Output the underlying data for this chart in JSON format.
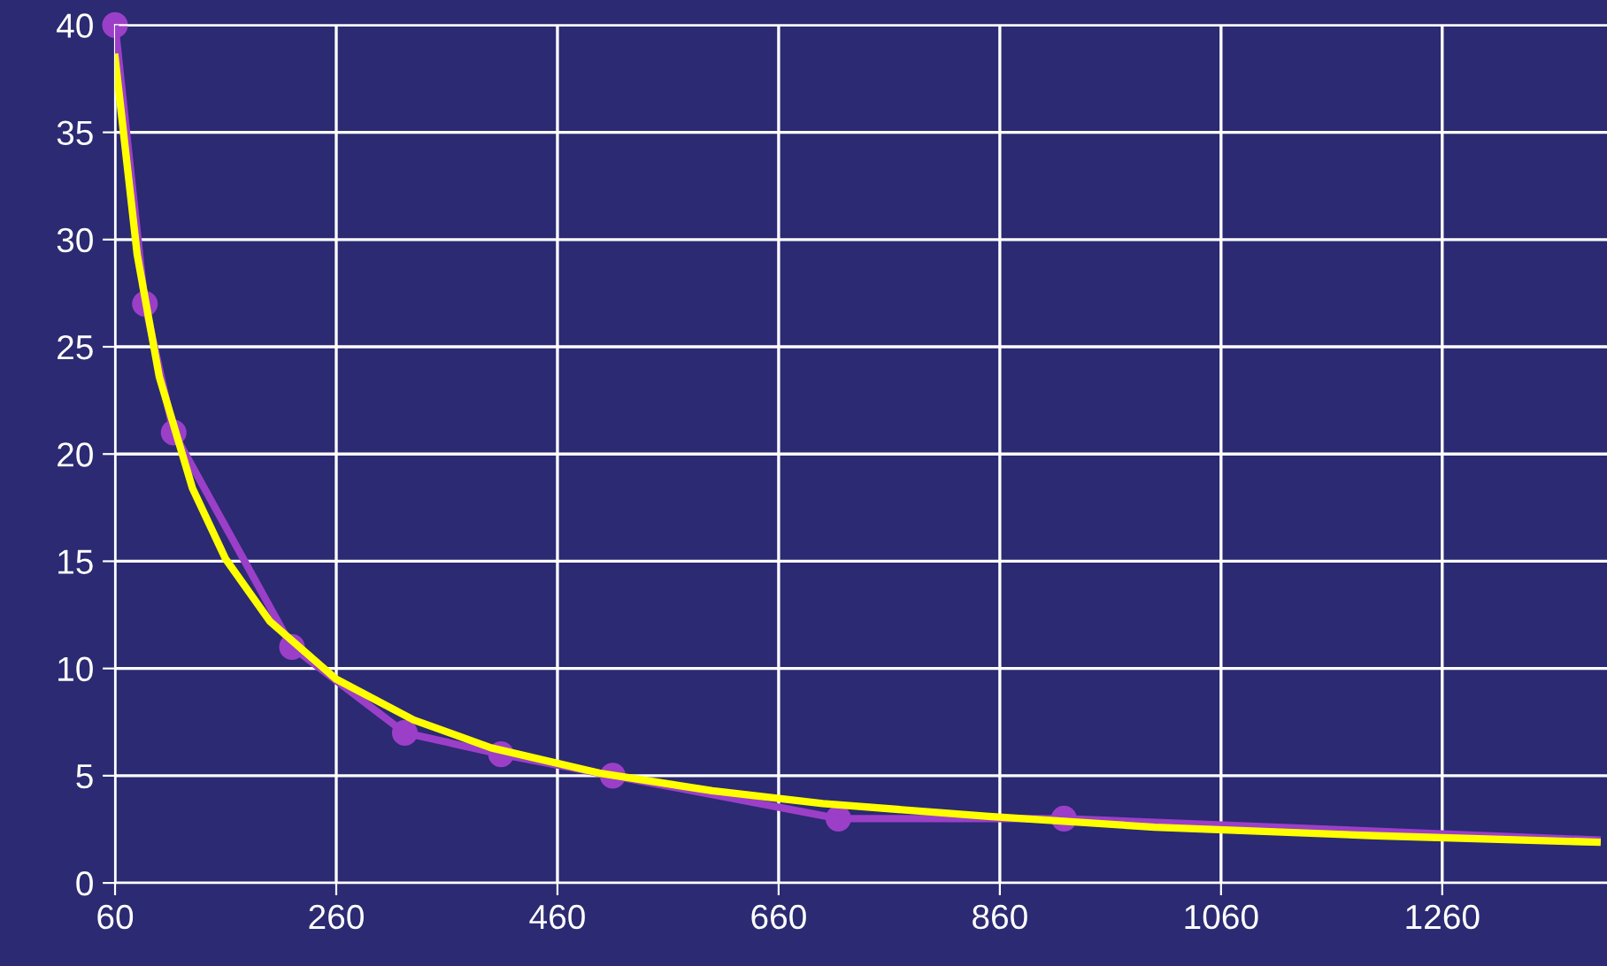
{
  "chart_data": {
    "type": "line",
    "series": [
      {
        "color": "#9b3fc8",
        "marker": "none",
        "x": [
          60,
          87,
          113,
          220,
          322,
          409,
          510,
          714,
          918,
          1400
        ],
        "values": [
          40,
          27,
          21,
          11,
          7,
          6,
          5,
          3,
          3,
          2
        ]
      },
      {
        "type": "scatter",
        "color": "#9b3fc8",
        "marker": "circle",
        "x": [
          60,
          87,
          113,
          220,
          322,
          409,
          510,
          714,
          918
        ],
        "values": [
          40,
          27,
          21,
          11,
          7,
          6,
          5,
          3,
          3
        ]
      },
      {
        "color": "#ffff00",
        "marker": "none",
        "x": [
          60,
          80,
          100,
          130,
          160,
          200,
          260,
          330,
          400,
          500,
          600,
          700,
          850,
          1000,
          1200,
          1400
        ],
        "values": [
          38.5,
          29.3,
          23.6,
          18.4,
          15.1,
          12.2,
          9.5,
          7.6,
          6.3,
          5.1,
          4.3,
          3.7,
          3.1,
          2.6,
          2.2,
          1.9
        ]
      }
    ],
    "xlim": [
      60,
      1409
    ],
    "xticks": [
      60,
      260,
      460,
      660,
      860,
      1060,
      1260
    ],
    "ylim": [
      0,
      40
    ],
    "yticks": [
      0,
      5,
      10,
      15,
      20,
      25,
      30,
      35,
      40
    ],
    "grid": true
  }
}
